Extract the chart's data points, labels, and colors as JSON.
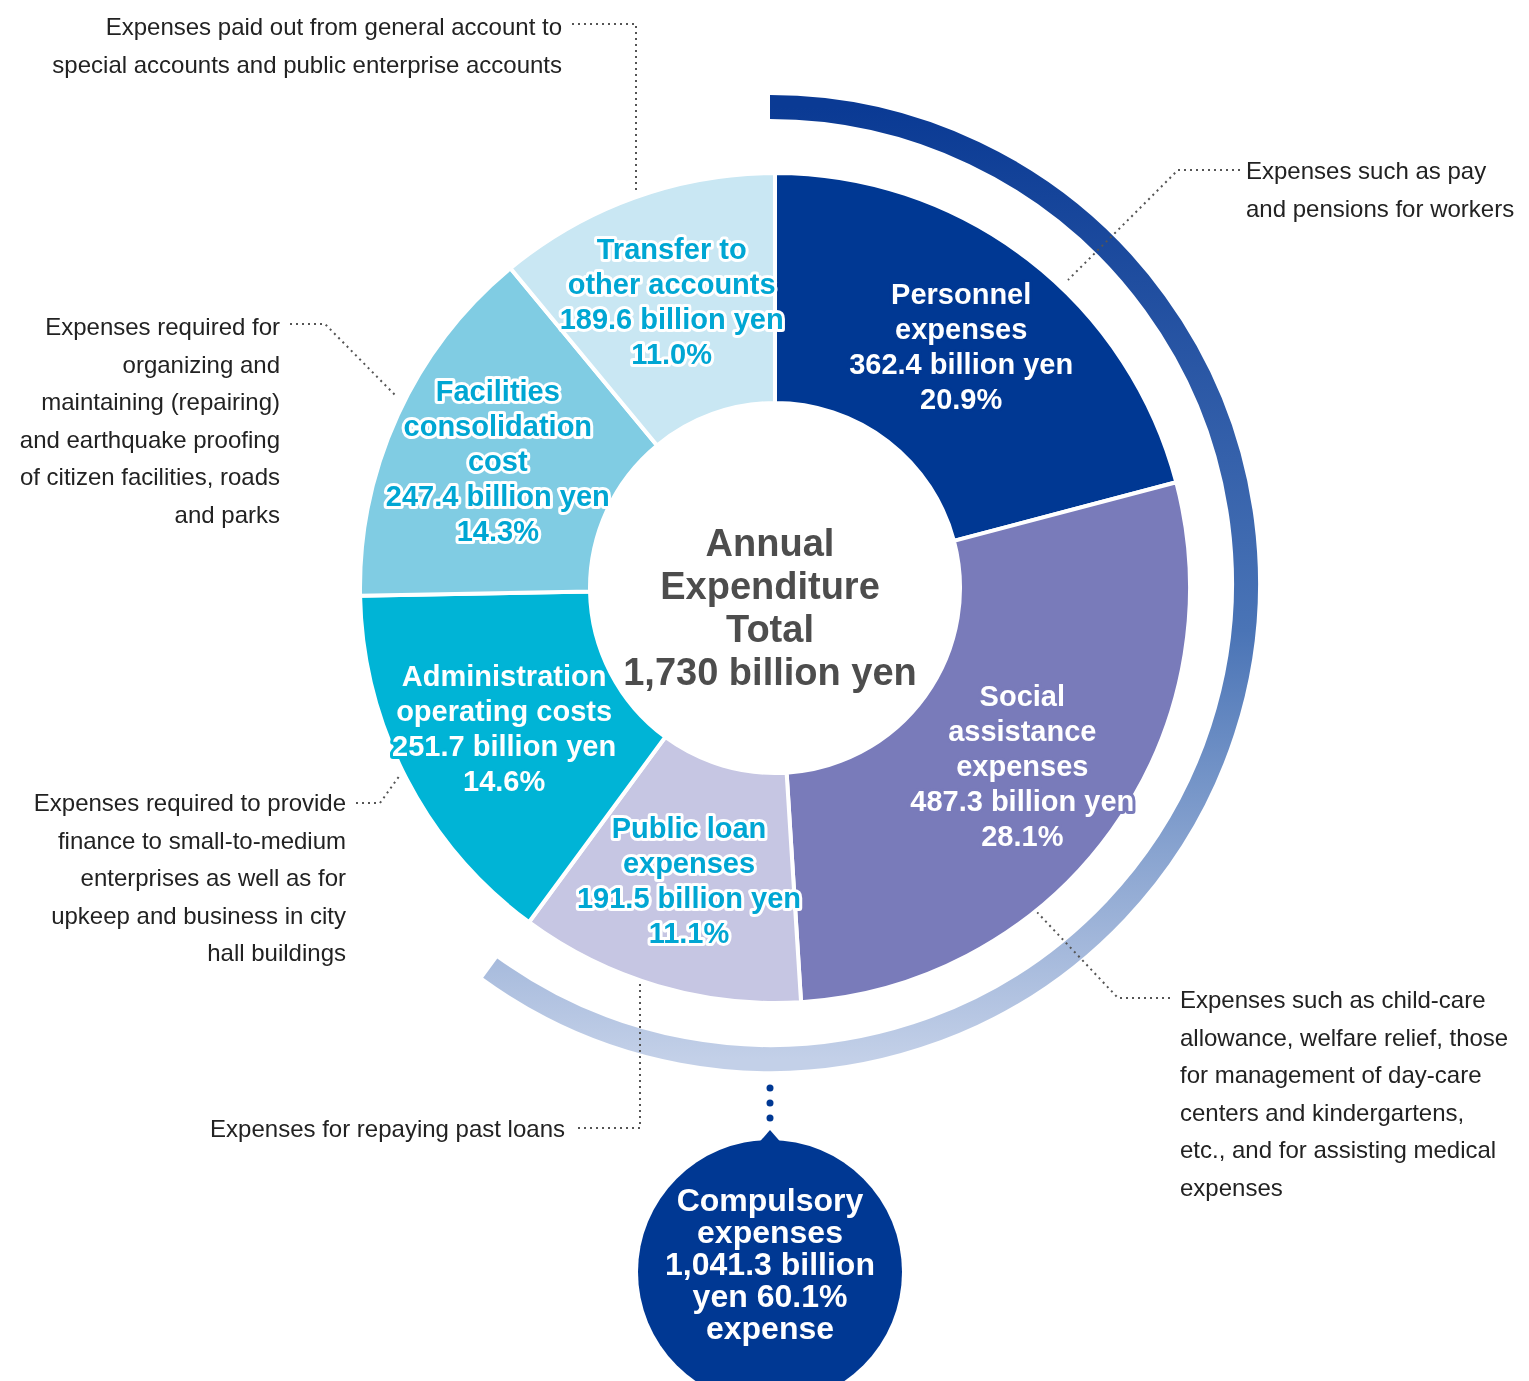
{
  "chart_data": {
    "type": "donut",
    "title": "Annual Expenditure Total",
    "subtitle": "1,730 billion yen",
    "categories": [
      "Personnel expenses",
      "Social assistance expenses",
      "Public loan expenses",
      "Administration operating costs",
      "Facilities consolidation cost",
      "Transfer to other accounts"
    ],
    "values": [
      20.9,
      28.1,
      11.1,
      14.6,
      14.3,
      11.0
    ],
    "value_labels": [
      "362.4 billion yen 20.9%",
      "487.3 billion yen 28.1%",
      "191.5 billion yen 11.1%",
      "251.7 billion yen 14.6%",
      "247.4 billion yen 14.3%",
      "189.6 billion yen 11.0%"
    ],
    "colors": [
      "#003893",
      "#797bba",
      "#c6c6e3",
      "#00b4d6",
      "#80cce3",
      "#c9e7f3"
    ],
    "annotations": [
      "Expenses paid out from general account to special accounts and public enterprise accounts",
      "Expenses such as pay and pensions for workers",
      "Expenses required for organizing and maintaining (repairing) and earthquake proofing of citizen facilities, roads and parks",
      "Expenses required to provide finance to small-to-medium enterprises as well as for upkeep and business in city hall buildings",
      "Expenses such as child-care allowance, welfare relief, those for management of day-care centers and kindergartens, etc., and for assisting medical expenses",
      "Expenses for repaying past loans",
      "Compulsory expenses 1,041.3 billion yen 60.1% expense"
    ]
  }
}
